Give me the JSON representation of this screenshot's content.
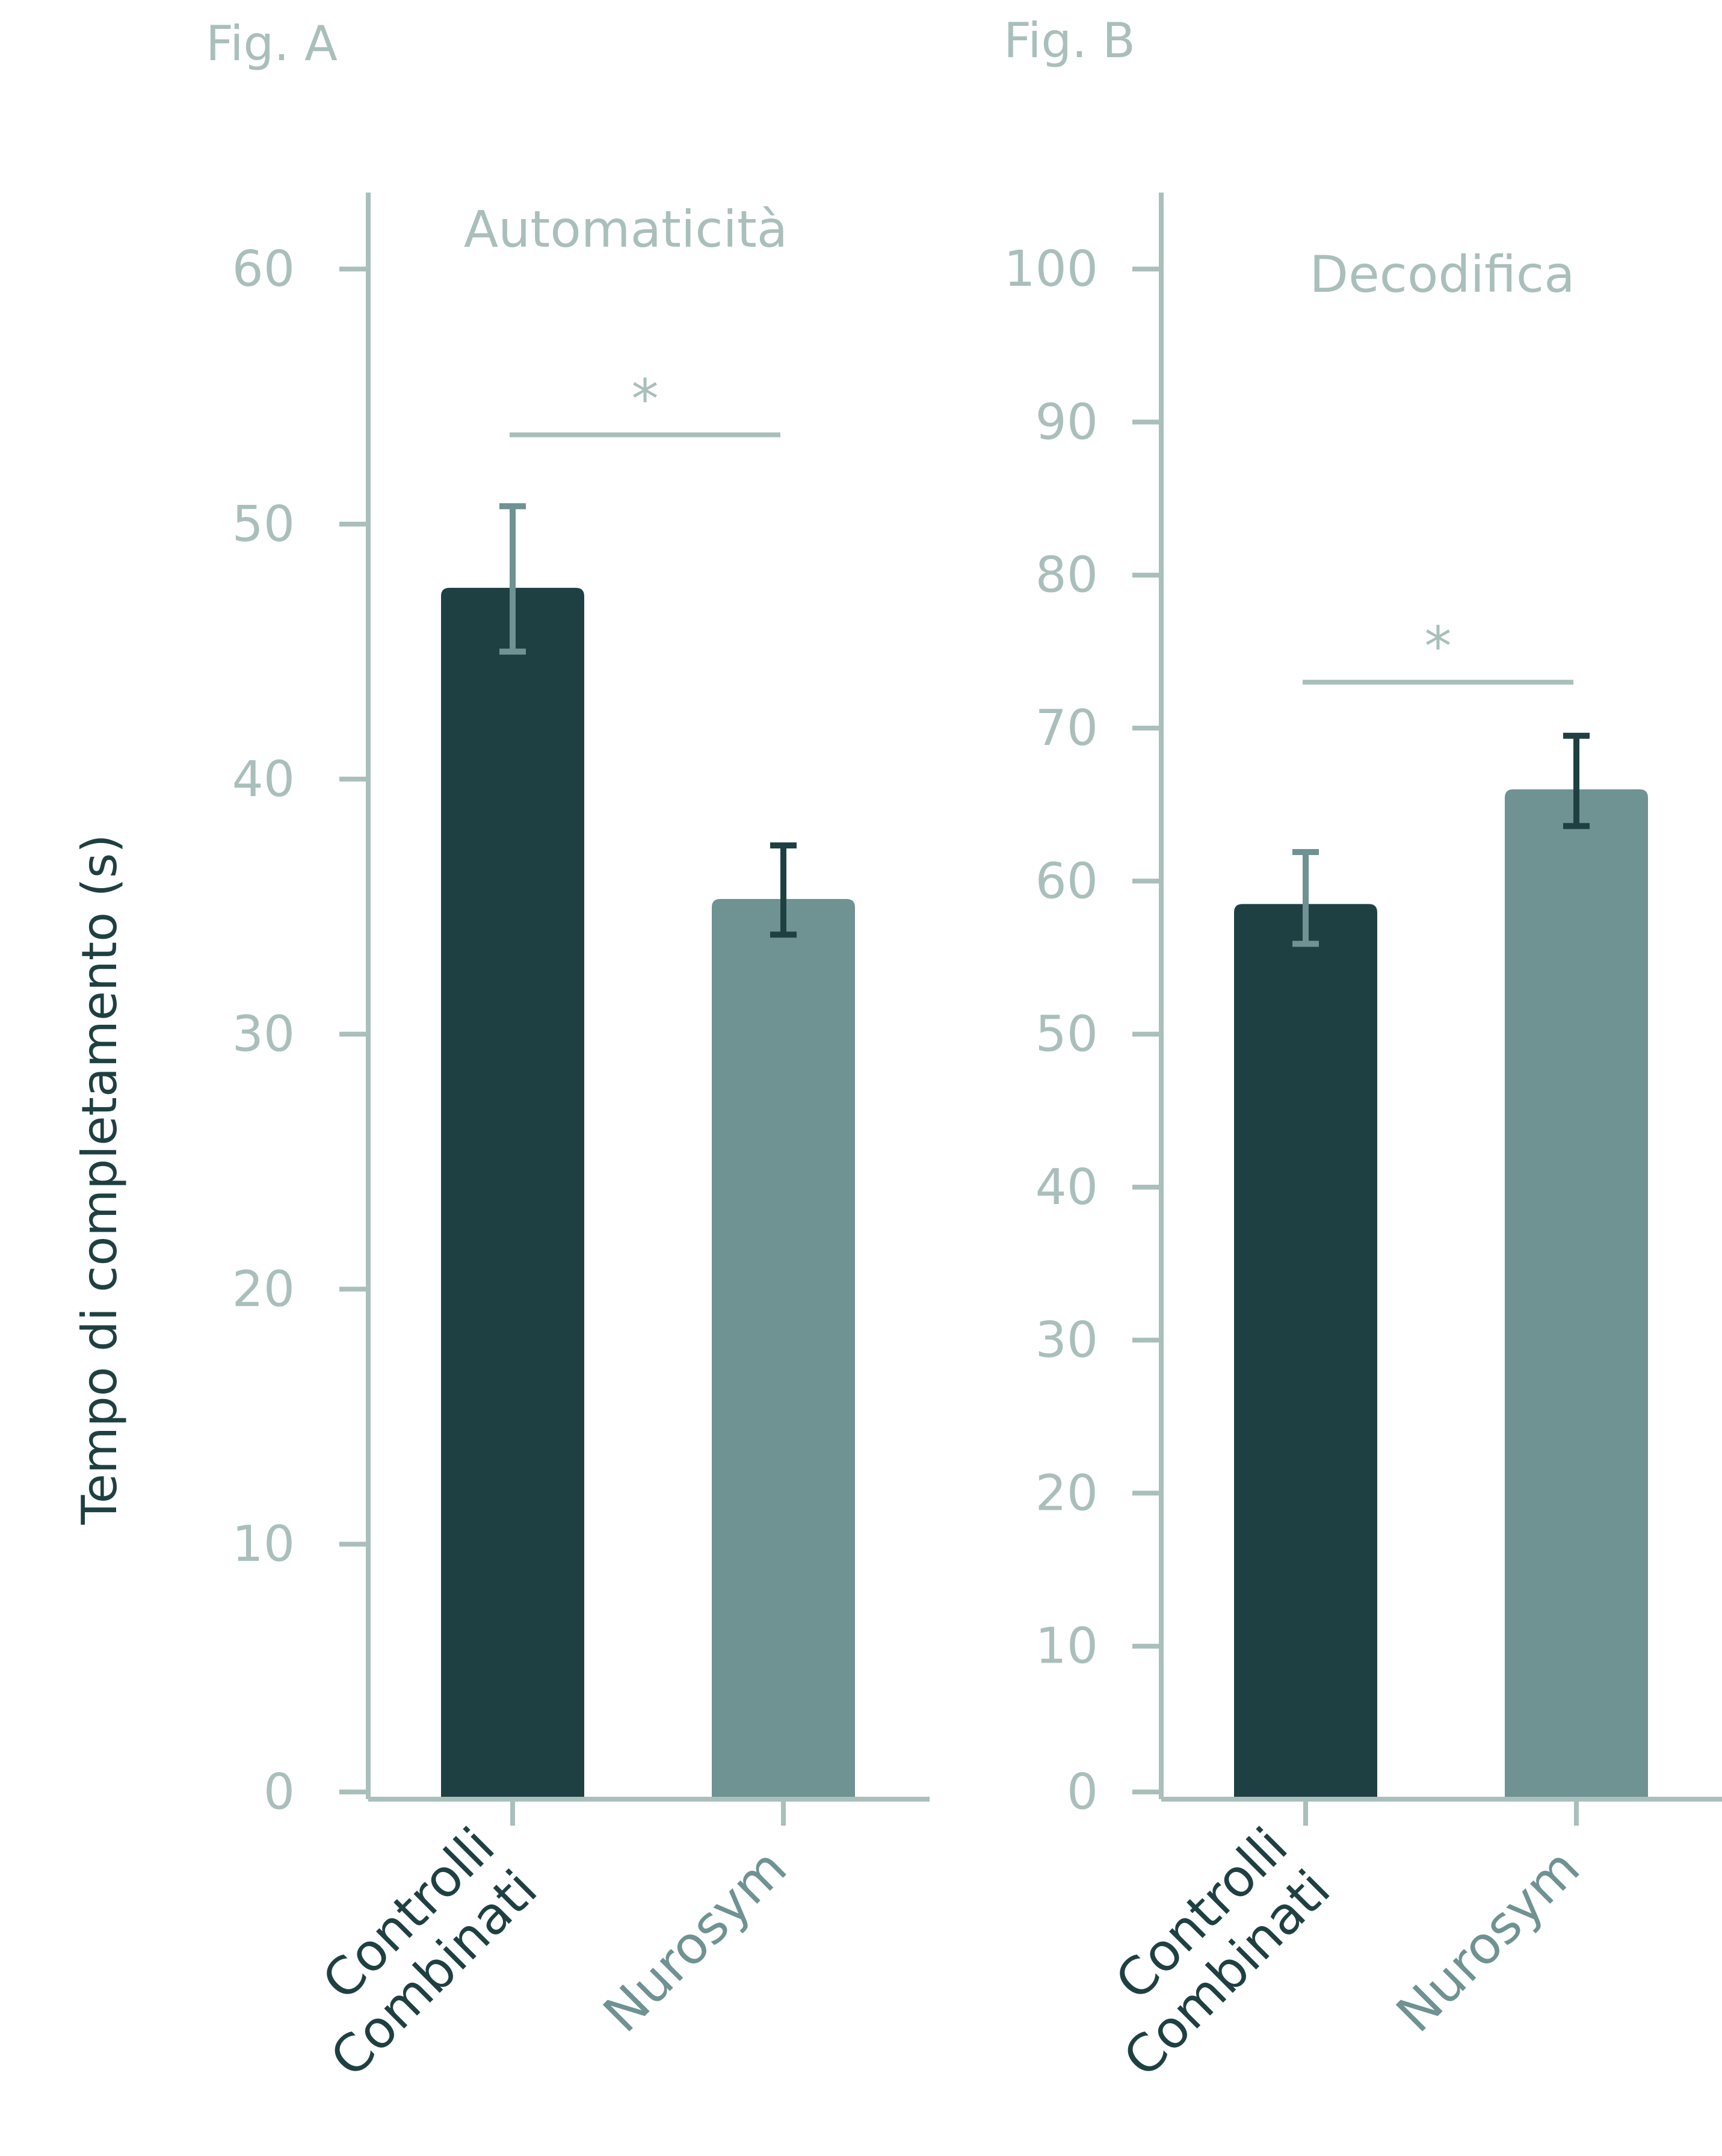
{
  "y_axis_label": "Tempo di completamento (s)",
  "colors": {
    "axis": "#a9bfbb",
    "controls": "#1e4042",
    "nurosym": "#6f9293",
    "dark_text": "#1e4042"
  },
  "chart_data": [
    {
      "type": "bar",
      "fig_label": "Fig. A",
      "title": "Automaticità",
      "categories": [
        "Controlli Combinati",
        "Nurosym"
      ],
      "category_lines": [
        [
          "Controlli",
          "Combinati"
        ],
        [
          "Nurosym"
        ]
      ],
      "values": [
        47.5,
        35.3
      ],
      "error_low": [
        45.0,
        33.9
      ],
      "error_high": [
        50.7,
        37.4
      ],
      "ylim": [
        0,
        63
      ],
      "yticks": [
        0,
        10,
        20,
        30,
        40,
        50,
        60
      ],
      "significance": {
        "from": 0,
        "to": 1,
        "label": "*",
        "y": 53.5
      }
    },
    {
      "type": "bar",
      "fig_label": "Fig. B",
      "title": "Decodifica",
      "categories": [
        "Controlli Combinati",
        "Nurosym"
      ],
      "category_lines": [
        [
          "Controlli",
          "Combinati"
        ],
        [
          "Nurosym"
        ]
      ],
      "values": [
        58.5,
        66.0
      ],
      "error_low": [
        55.9,
        63.6
      ],
      "error_high": [
        61.9,
        69.5
      ],
      "ylim": [
        0,
        105
      ],
      "yticks": [
        0,
        10,
        20,
        30,
        40,
        50,
        60,
        70,
        80,
        90,
        100
      ],
      "significance": {
        "from": 0,
        "to": 1,
        "label": "*",
        "y": 73
      }
    }
  ]
}
